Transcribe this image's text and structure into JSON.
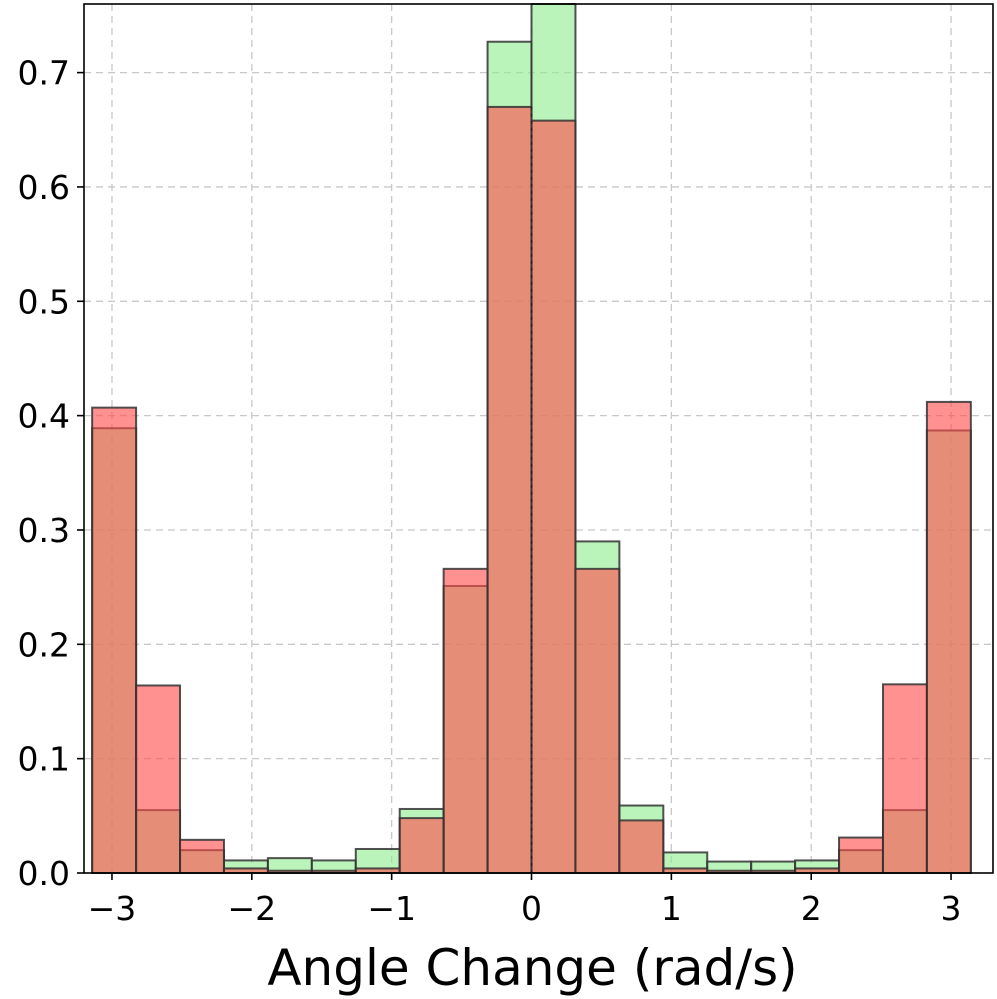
{
  "chart_data": {
    "type": "bar",
    "xlabel": "Angle Change (rad/s)",
    "ylabel": "",
    "xlim": [
      -3.2,
      3.3
    ],
    "ylim": [
      0,
      0.76
    ],
    "x_ticks": [
      -3,
      -2,
      -1,
      0,
      1,
      2,
      3
    ],
    "x_tick_labels": [
      "−3",
      "−2",
      "−1",
      "0",
      "1",
      "2",
      "3"
    ],
    "y_ticks": [
      0.0,
      0.1,
      0.2,
      0.3,
      0.4,
      0.5,
      0.6,
      0.7
    ],
    "y_tick_labels": [
      "0.0",
      "0.1",
      "0.2",
      "0.3",
      "0.4",
      "0.5",
      "0.6",
      "0.7"
    ],
    "grid": true,
    "bin_edges": [
      -3.1416,
      -2.8274,
      -2.5133,
      -2.1991,
      -1.885,
      -1.5708,
      -1.2566,
      -0.9425,
      -0.6283,
      -0.3142,
      0.0,
      0.3142,
      0.6283,
      0.9425,
      1.2566,
      1.5708,
      1.885,
      2.1991,
      2.5133,
      2.8274,
      3.1416
    ],
    "series": [
      {
        "color": "#90ee90",
        "values": [
          0.389,
          0.055,
          0.02,
          0.011,
          0.013,
          0.011,
          0.021,
          0.056,
          0.251,
          0.727,
          0.76,
          0.29,
          0.059,
          0.018,
          0.01,
          0.01,
          0.011,
          0.02,
          0.055,
          0.387
        ]
      },
      {
        "color": "#ff4d4d",
        "values": [
          0.407,
          0.164,
          0.029,
          0.004,
          0.002,
          0.002,
          0.004,
          0.048,
          0.266,
          0.67,
          0.658,
          0.266,
          0.046,
          0.004,
          0.002,
          0.002,
          0.004,
          0.031,
          0.165,
          0.412
        ]
      }
    ],
    "center_line_x": 0
  }
}
